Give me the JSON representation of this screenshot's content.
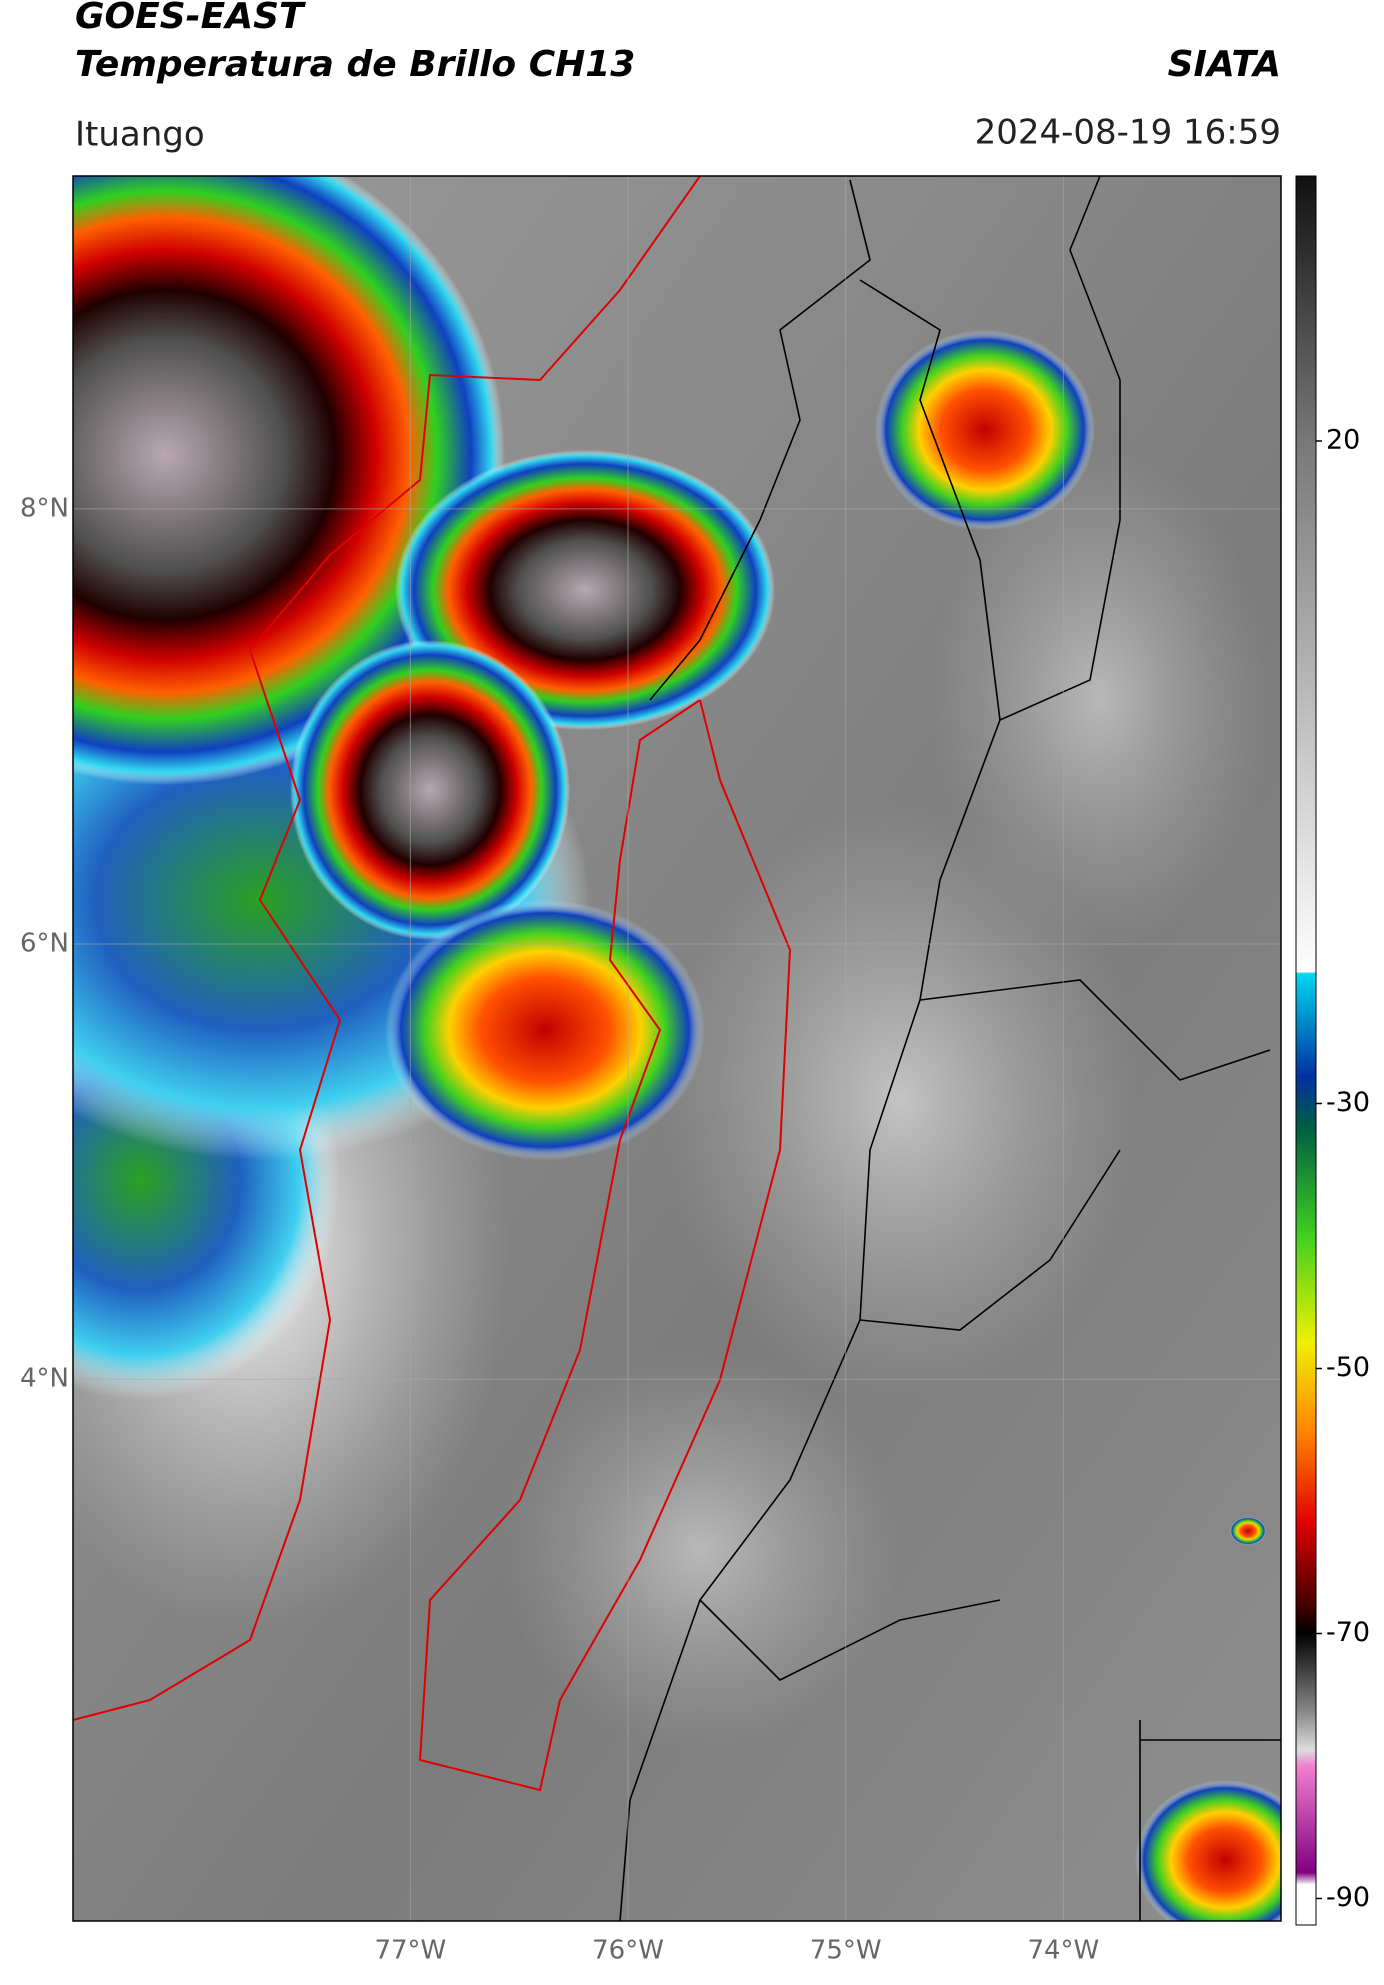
{
  "header": {
    "title": "GOES-EAST",
    "subtitle": "Temperatura de Brillo CH13",
    "brand": "SIATA",
    "region": "Ituango",
    "timestamp": "2024-08-19 16:59"
  },
  "map": {
    "xlim": [
      -78.55,
      -73.0
    ],
    "ylim": [
      1.51,
      9.53
    ],
    "xticks": [
      {
        "value": -77,
        "label": "77°W"
      },
      {
        "value": -76,
        "label": "76°W"
      },
      {
        "value": -75,
        "label": "75°W"
      },
      {
        "value": -74,
        "label": "74°W"
      }
    ],
    "yticks": [
      {
        "value": 8,
        "label": "8°N"
      },
      {
        "value": 6,
        "label": "6°N"
      },
      {
        "value": 4,
        "label": "4°N"
      }
    ],
    "colorbar": {
      "lim": [
        -92,
        40
      ],
      "ticks": [
        20,
        -30,
        -50,
        -70,
        -90
      ]
    }
  }
}
